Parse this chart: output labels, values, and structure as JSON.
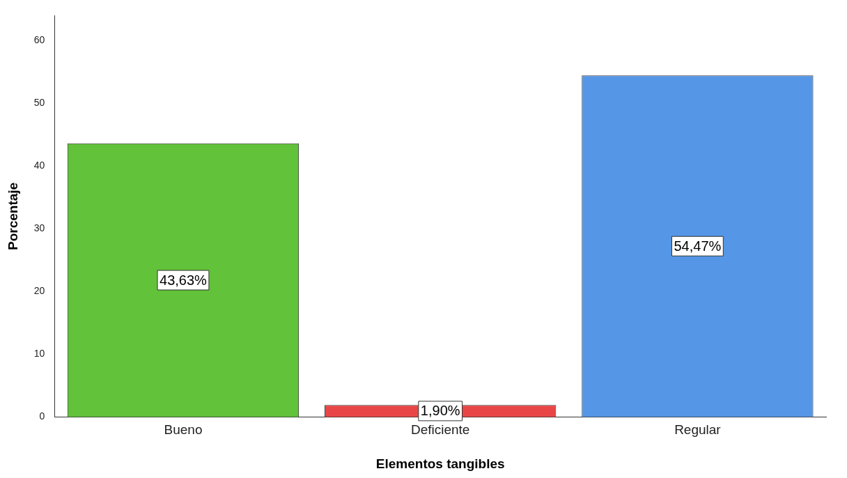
{
  "chart_data": {
    "type": "bar",
    "xlabel": "Elementos tangibles",
    "ylabel": "Porcentaje",
    "categories": [
      "Bueno",
      "Deficiente",
      "Regular"
    ],
    "values": [
      43.63,
      1.9,
      54.47
    ],
    "colors": [
      "#62c23a",
      "#e84646",
      "#5596e6"
    ],
    "value_labels": [
      "43,63%",
      "1,90%",
      "54,47%"
    ],
    "ylim": [
      0,
      64
    ],
    "yticks": [
      0,
      10,
      20,
      30,
      40,
      50,
      60
    ],
    "grid": false,
    "legend": false
  }
}
